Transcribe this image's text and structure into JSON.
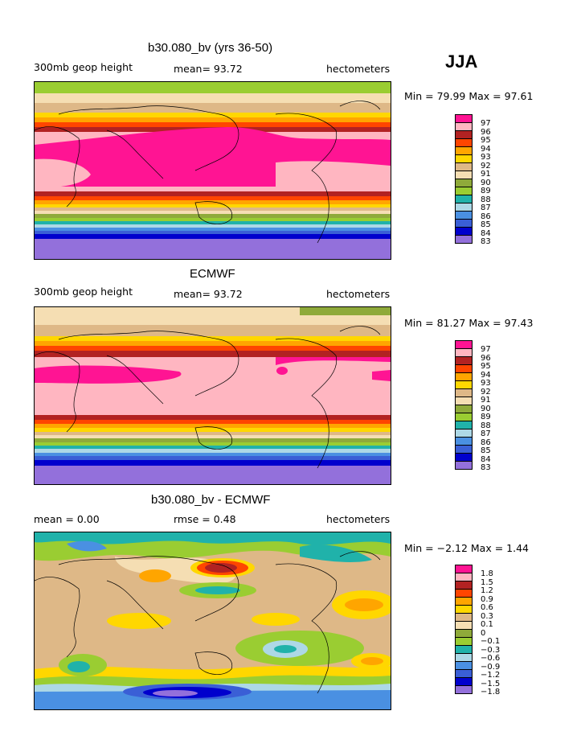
{
  "season": "JJA",
  "panels": [
    {
      "title": "b30.080_bv (yrs 36-50)",
      "left": "300mb geop height",
      "mid": "mean=  93.72",
      "right": "hectometers",
      "minmax": "Min =   79.99 Max =   97.61",
      "levels": [
        "97",
        "96",
        "95",
        "94",
        "93",
        "92",
        "91",
        "90",
        "89",
        "88",
        "87",
        "86",
        "85",
        "84",
        "83"
      ],
      "colors": [
        "#ff1493",
        "#ffb6c1",
        "#b22222",
        "#ff4500",
        "#ffa500",
        "#ffd700",
        "#deb887",
        "#f5deb3",
        "#8faa3a",
        "#9acd32",
        "#20b2aa",
        "#add8e6",
        "#4a90e2",
        "#3a5fd6",
        "#0000cd",
        "#9370db"
      ]
    },
    {
      "title": "ECMWF",
      "left": "300mb geop height",
      "mid": "mean=  93.72",
      "right": "hectometers",
      "minmax": "Min =   81.27 Max =   97.43",
      "levels": [
        "97",
        "96",
        "95",
        "94",
        "93",
        "92",
        "91",
        "90",
        "89",
        "88",
        "87",
        "86",
        "85",
        "84",
        "83"
      ],
      "colors": [
        "#ff1493",
        "#ffb6c1",
        "#b22222",
        "#ff4500",
        "#ffa500",
        "#ffd700",
        "#deb887",
        "#f5deb3",
        "#8faa3a",
        "#9acd32",
        "#20b2aa",
        "#add8e6",
        "#4a90e2",
        "#3a5fd6",
        "#0000cd",
        "#9370db"
      ]
    },
    {
      "title": "b30.080_bv - ECMWF",
      "left": "mean =     0.00",
      "mid": "rmse =     0.48",
      "right": "hectometers",
      "minmax": "Min =  −2.12 Max =    1.44",
      "levels": [
        "1.8",
        "1.5",
        "1.2",
        "0.9",
        "0.6",
        "0.3",
        "0.1",
        "0",
        "−0.1",
        "−0.3",
        "−0.6",
        "−0.9",
        "−1.2",
        "−1.5",
        "−1.8"
      ],
      "colors": [
        "#ff1493",
        "#ffb6c1",
        "#b22222",
        "#ff4500",
        "#ffa500",
        "#ffd700",
        "#deb887",
        "#f5deb3",
        "#8faa3a",
        "#9acd32",
        "#20b2aa",
        "#add8e6",
        "#4a90e2",
        "#3a5fd6",
        "#0000cd",
        "#9370db"
      ]
    }
  ]
}
